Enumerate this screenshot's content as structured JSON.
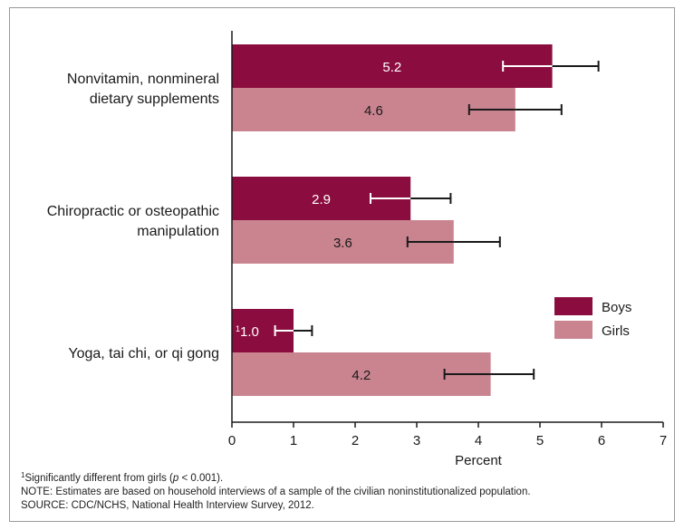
{
  "chart_data": {
    "type": "bar",
    "orientation": "horizontal",
    "categories": [
      "Nonvitamin, nonmineral dietary supplements",
      "Chiropractic or osteopathic manipulation",
      "Yoga, tai chi, or qi gong"
    ],
    "category_lines": [
      [
        "Nonvitamin, nonmineral",
        "dietary supplements"
      ],
      [
        "Chiropractic or osteopathic",
        "manipulation"
      ],
      [
        "Yoga, tai chi, or qi gong"
      ]
    ],
    "series": [
      {
        "name": "Boys",
        "color": "#8b0d3f",
        "values": [
          5.2,
          2.9,
          1.0
        ],
        "labels": [
          "5.2",
          "2.9",
          "1.0"
        ],
        "label_prefix": [
          "",
          "",
          "1"
        ],
        "error_low": [
          4.4,
          2.25,
          0.7
        ],
        "error_high": [
          5.95,
          3.55,
          1.3
        ]
      },
      {
        "name": "Girls",
        "color": "#c98490",
        "values": [
          4.6,
          3.6,
          4.2
        ],
        "labels": [
          "4.6",
          "3.6",
          "4.2"
        ],
        "label_prefix": [
          "",
          "",
          ""
        ],
        "error_low": [
          3.85,
          2.85,
          3.45
        ],
        "error_high": [
          5.35,
          4.35,
          4.9
        ]
      }
    ],
    "xlabel": "Percent",
    "xlim": [
      0,
      7
    ],
    "xticks": [
      "0",
      "1",
      "2",
      "3",
      "4",
      "5",
      "6",
      "7"
    ],
    "grid": false,
    "legend": "right"
  },
  "footnotes": {
    "note1_marker": "1",
    "note1_pre": "Significantly different from girls (",
    "note1_p": "p",
    "note1_post": " < 0.001).",
    "note2": "NOTE: Estimates are based on household interviews of a sample of the civilian noninstitutionalized population.",
    "note3": "SOURCE: CDC/NCHS, National Health Interview Survey, 2012."
  }
}
